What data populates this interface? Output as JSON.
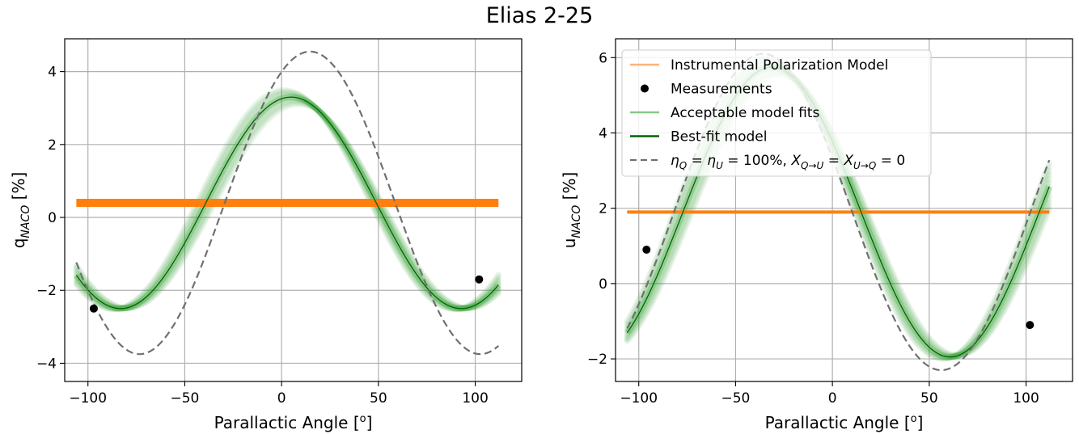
{
  "figure": {
    "title": "Elias 2-25"
  },
  "chart_data": [
    {
      "type": "line",
      "xlabel": "Parallactic Angle [°]",
      "xlabel_main": "Parallactic Angle [",
      "xlabel_sup": "o",
      "xlabel_end": "]",
      "ylabel_main": "q",
      "ylabel_sub": "NACO",
      "ylabel_end": " [%]",
      "xlim": [
        -112,
        124
      ],
      "ylim": [
        -4.5,
        4.9
      ],
      "xticks": [
        -100,
        -50,
        0,
        50,
        100
      ],
      "yticks": [
        -4,
        -2,
        0,
        2,
        4
      ],
      "xtick_labels": [
        "−100",
        "−50",
        "0",
        "50",
        "100"
      ],
      "ytick_labels": [
        "−4",
        "−2",
        "0",
        "2",
        "4"
      ],
      "grid": true,
      "x_range": [
        -106,
        112
      ],
      "series": [
        {
          "role": "instrumental",
          "color": "#ff7f0e",
          "y_constant": 0.4
        },
        {
          "role": "acceptable_fits",
          "color": "#2ca02c",
          "model": {
            "offset": 0.4,
            "amplitude": 2.9,
            "period": 176,
            "phase_deg": 80
          }
        },
        {
          "role": "best_fit",
          "color": "#006400",
          "model": {
            "offset": 0.4,
            "amplitude": 2.9,
            "period": 176,
            "phase_deg": 80
          }
        },
        {
          "role": "ideal",
          "color": "#707070",
          "model": {
            "offset": 0.4,
            "amplitude": 4.15,
            "period": 176,
            "phase_deg": 60
          }
        },
        {
          "role": "measurements",
          "color": "#000000",
          "points": [
            {
              "x": -97,
              "y": -2.5
            },
            {
              "x": 102,
              "y": -1.7
            }
          ]
        }
      ]
    },
    {
      "type": "line",
      "xlabel": "Parallactic Angle [°]",
      "xlabel_main": "Parallactic Angle [",
      "xlabel_sup": "o",
      "xlabel_end": "]",
      "ylabel_main": "u",
      "ylabel_sub": "NACO",
      "ylabel_end": " [%]",
      "xlim": [
        -112,
        124
      ],
      "ylim": [
        -2.6,
        6.5
      ],
      "xticks": [
        -100,
        -50,
        0,
        50,
        100
      ],
      "yticks": [
        -2,
        0,
        2,
        4,
        6
      ],
      "xtick_labels": [
        "−100",
        "−50",
        "0",
        "50",
        "100"
      ],
      "ytick_labels": [
        "−2",
        "0",
        "2",
        "4",
        "6"
      ],
      "grid": true,
      "x_range": [
        -106,
        112
      ],
      "legend_position": "upper-left",
      "legend": [
        {
          "label": "Instrumental Polarization Model",
          "marker": "line",
          "color": "#ffb27a"
        },
        {
          "label": "Measurements",
          "marker": "dot",
          "color": "#000000"
        },
        {
          "label": "Acceptable model fits",
          "marker": "line",
          "color": "#86c986"
        },
        {
          "label": "Best-fit model",
          "marker": "line",
          "color": "#006400"
        },
        {
          "label": "η_Q = η_U = 100%, X_Q→U = X_U→Q = 0",
          "marker": "dash",
          "color": "#707070"
        }
      ],
      "series": [
        {
          "role": "instrumental",
          "color": "#ff7f0e",
          "y_constant": 1.9
        },
        {
          "role": "acceptable_fits",
          "color": "#2ca02c",
          "model": {
            "offset": 1.9,
            "amplitude": 3.85,
            "period": 184,
            "phase_deg": 151
          }
        },
        {
          "role": "best_fit",
          "color": "#006400",
          "model": {
            "offset": 1.9,
            "amplitude": 3.85,
            "period": 184,
            "phase_deg": 151
          }
        },
        {
          "role": "ideal",
          "color": "#707070",
          "model": {
            "offset": 1.9,
            "amplitude": 4.2,
            "period": 184,
            "phase_deg": 160
          }
        },
        {
          "role": "measurements",
          "color": "#000000",
          "points": [
            {
              "x": -96,
              "y": 0.9
            },
            {
              "x": 102,
              "y": -1.1
            }
          ]
        }
      ]
    }
  ]
}
